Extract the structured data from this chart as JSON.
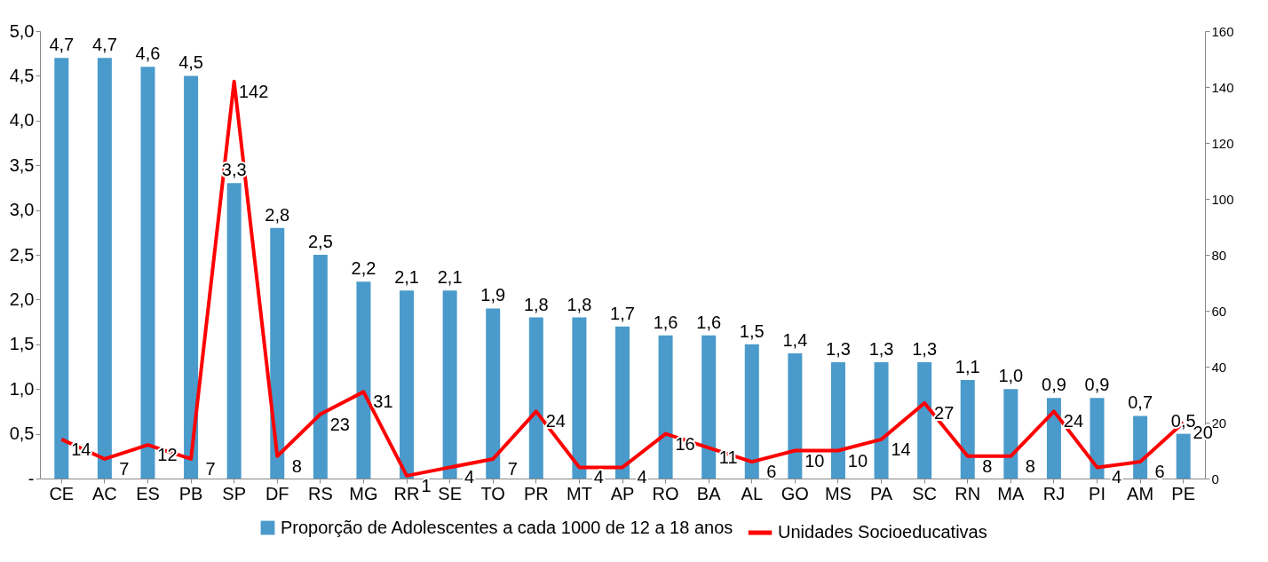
{
  "chart_data": {
    "type": "bar",
    "categories": [
      "CE",
      "AC",
      "ES",
      "PB",
      "SP",
      "DF",
      "RS",
      "MG",
      "RR",
      "SE",
      "TO",
      "PR",
      "MT",
      "AP",
      "RO",
      "BA",
      "AL",
      "GO",
      "MS",
      "PA",
      "SC",
      "RN",
      "MA",
      "RJ",
      "PI",
      "AM",
      "PE"
    ],
    "series": [
      {
        "name": "Proporção de Adolescentes a cada 1000  de 12 a 18 anos",
        "color": "#4a9acb",
        "values": [
          4.7,
          4.7,
          4.6,
          4.5,
          3.3,
          2.8,
          2.5,
          2.2,
          2.1,
          2.1,
          1.9,
          1.8,
          1.8,
          1.7,
          1.6,
          1.6,
          1.5,
          1.4,
          1.3,
          1.3,
          1.3,
          1.1,
          1.0,
          0.9,
          0.9,
          0.7,
          0.5
        ],
        "value_labels": [
          "4,7",
          "4,7",
          "4,6",
          "4,5",
          "3,3",
          "2,8",
          "2,5",
          "2,2",
          "2,1",
          "2,1",
          "1,9",
          "1,8",
          "1,8",
          "1,7",
          "1,6",
          "1,6",
          "1,5",
          "1,4",
          "1,3",
          "1,3",
          "1,3",
          "1,1",
          "1,0",
          "0,9",
          "0,9",
          "0,7",
          "0,5"
        ]
      },
      {
        "name": "Unidades Socioeducativas",
        "type": "line",
        "axis": "y2",
        "color": "#ff0000",
        "values": [
          14,
          7,
          12,
          7,
          142,
          8,
          23,
          31,
          1,
          4,
          7,
          24,
          4,
          4,
          16,
          11,
          6,
          10,
          10,
          14,
          27,
          8,
          8,
          24,
          4,
          6,
          20
        ],
        "value_labels": [
          "14",
          "7",
          "12",
          "7",
          "142",
          "8",
          "23",
          "31",
          "1",
          "4",
          "7",
          "24",
          "4",
          "4",
          "16",
          "11",
          "6",
          "10",
          "10",
          "14",
          "27",
          "8",
          "8",
          "24",
          "4",
          "6",
          "20"
        ]
      }
    ],
    "ylim": [
      0,
      5
    ],
    "yticks": [
      {
        "value": 0,
        "label": "-"
      },
      {
        "value": 0.5,
        "label": "0,5"
      },
      {
        "value": 1,
        "label": "1,0"
      },
      {
        "value": 1.5,
        "label": "1,5"
      },
      {
        "value": 2,
        "label": "2,0"
      },
      {
        "value": 2.5,
        "label": "2,5"
      },
      {
        "value": 3,
        "label": "3,0"
      },
      {
        "value": 3.5,
        "label": "3,5"
      },
      {
        "value": 4,
        "label": "4,0"
      },
      {
        "value": 4.5,
        "label": "4,5"
      },
      {
        "value": 5,
        "label": "5,0"
      }
    ],
    "y2lim": [
      0,
      160
    ],
    "y2ticks": [
      0,
      20,
      40,
      60,
      80,
      100,
      120,
      140,
      160
    ],
    "legend": "bottom",
    "marker": "none"
  }
}
